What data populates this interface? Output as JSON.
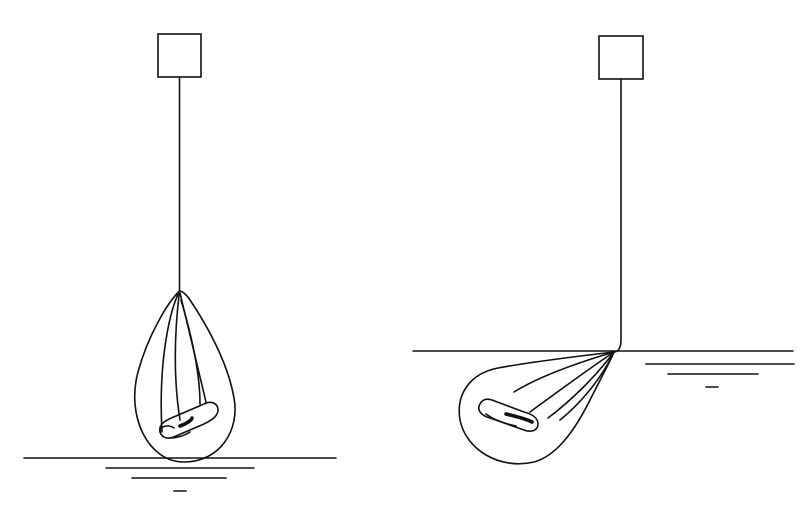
{
  "figure": {
    "panels": [
      {
        "id": "left",
        "description_visible_text": ""
      },
      {
        "id": "right",
        "description_visible_text": ""
      }
    ],
    "colors": {
      "stroke": "#111111",
      "background": "#ffffff"
    },
    "elements": [
      "hanger-box",
      "suspension-line",
      "sling-bag",
      "load",
      "ground-line",
      "ground-symbol"
    ]
  }
}
